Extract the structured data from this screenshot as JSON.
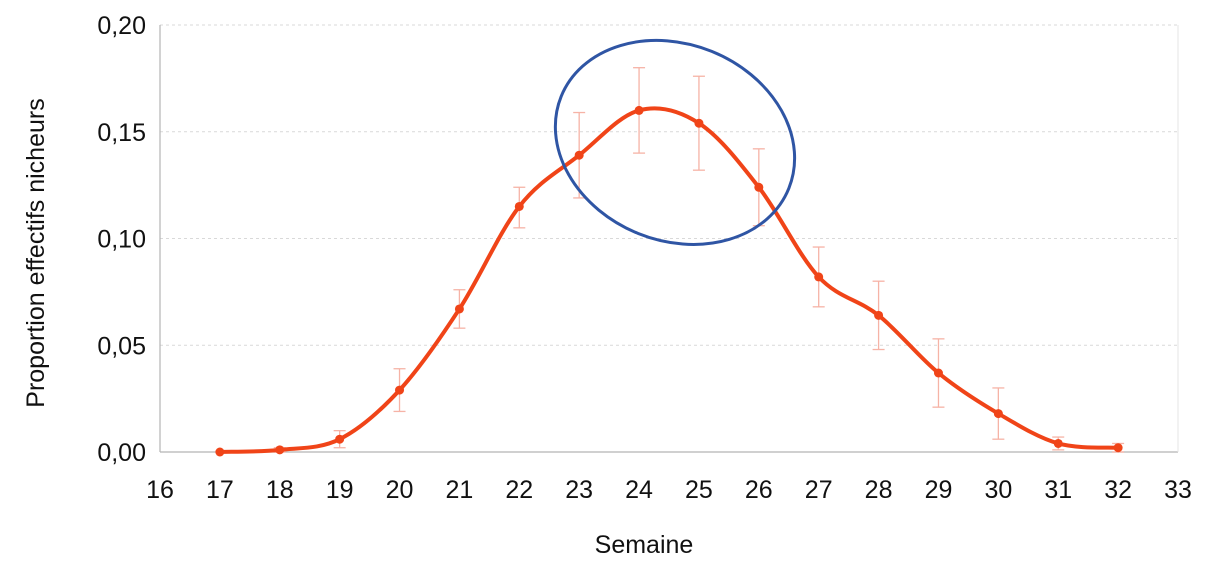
{
  "chart_data": {
    "type": "line",
    "xlabel": "Semaine",
    "ylabel": "Proportion effectifs nicheurs",
    "xlim": [
      16,
      33
    ],
    "ylim": [
      0,
      0.2
    ],
    "x_ticks": [
      "16",
      "17",
      "18",
      "19",
      "20",
      "21",
      "22",
      "23",
      "24",
      "25",
      "26",
      "27",
      "28",
      "29",
      "30",
      "31",
      "32",
      "33"
    ],
    "y_ticks": [
      "0,00",
      "0,05",
      "0,10",
      "0,15",
      "0,20"
    ],
    "grid": "horizontal dashed",
    "series": [
      {
        "color": "#f04418",
        "x": [
          17,
          18,
          19,
          20,
          21,
          22,
          23,
          24,
          25,
          26,
          27,
          28,
          29,
          30,
          31,
          32
        ],
        "y": [
          0.0,
          0.001,
          0.006,
          0.029,
          0.067,
          0.115,
          0.139,
          0.16,
          0.154,
          0.124,
          0.082,
          0.064,
          0.037,
          0.018,
          0.004,
          0.002
        ],
        "error_low": [
          0.0,
          0.0,
          0.002,
          0.019,
          0.058,
          0.105,
          0.119,
          0.14,
          0.132,
          0.106,
          0.068,
          0.048,
          0.021,
          0.006,
          0.001,
          0.0
        ],
        "error_high": [
          0.0,
          0.002,
          0.01,
          0.039,
          0.076,
          0.124,
          0.159,
          0.18,
          0.176,
          0.142,
          0.096,
          0.08,
          0.053,
          0.03,
          0.007,
          0.004
        ]
      }
    ],
    "annotations": [
      {
        "type": "ellipse",
        "color": "#2f55a4",
        "x_center": 24.6,
        "y_center": 0.145,
        "x_radius": 2.05,
        "y_radius": 0.046
      }
    ]
  }
}
